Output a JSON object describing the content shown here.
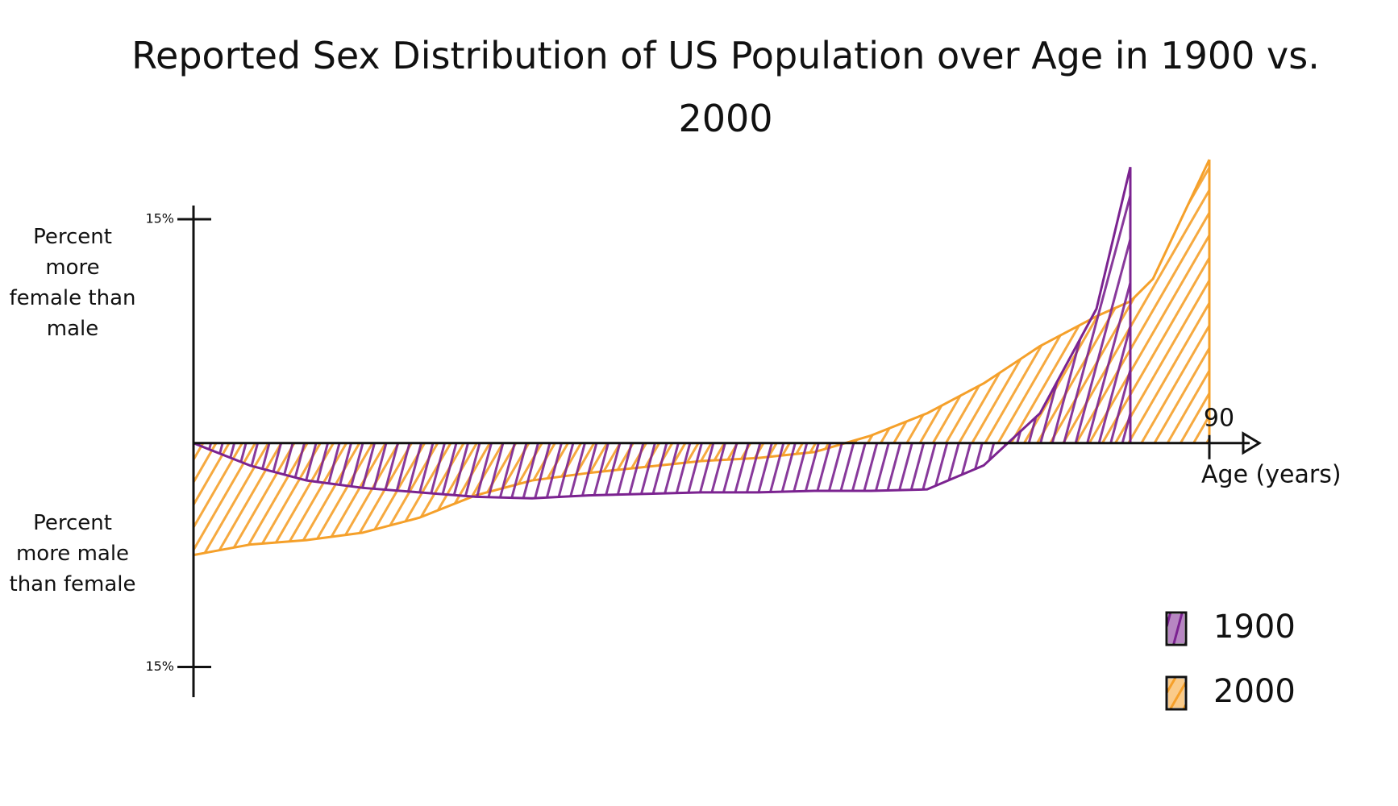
{
  "chart_data": {
    "type": "area",
    "title": "Reported Sex Distribution of US Population over Age in 1900 vs. 2000",
    "y_label_top": "Percent more female than male",
    "y_label_bottom": "Percent more male than female",
    "x_label": "Age (years)",
    "x": [
      0,
      5,
      10,
      15,
      20,
      25,
      30,
      35,
      40,
      45,
      50,
      55,
      60,
      65,
      70,
      75,
      80,
      83,
      85,
      90
    ],
    "series": [
      {
        "name": "1900",
        "color": "#7b2390",
        "values": [
          0,
          -1.5,
          -2.5,
          -3,
          -3.3,
          -3.6,
          -3.7,
          -3.5,
          -3.4,
          -3.3,
          -3.3,
          -3.2,
          -3.2,
          -3.1,
          -1.5,
          2,
          9,
          18.5,
          null,
          null
        ]
      },
      {
        "name": "2000",
        "color": "#f5a02a",
        "values": [
          -7.5,
          -6.8,
          -6.5,
          -6,
          -5,
          -3.5,
          -2.5,
          -2,
          -1.6,
          -1.2,
          -1,
          -0.6,
          0.5,
          2,
          4,
          6.5,
          8.5,
          9.5,
          11,
          19
        ]
      }
    ],
    "xlim": [
      0,
      90
    ],
    "xticks": [
      90
    ],
    "ylim": [
      -16,
      19
    ],
    "yticks": [
      {
        "value": 15,
        "label": "15%"
      },
      {
        "value": -15,
        "label": "15%"
      }
    ],
    "hatched": true
  }
}
